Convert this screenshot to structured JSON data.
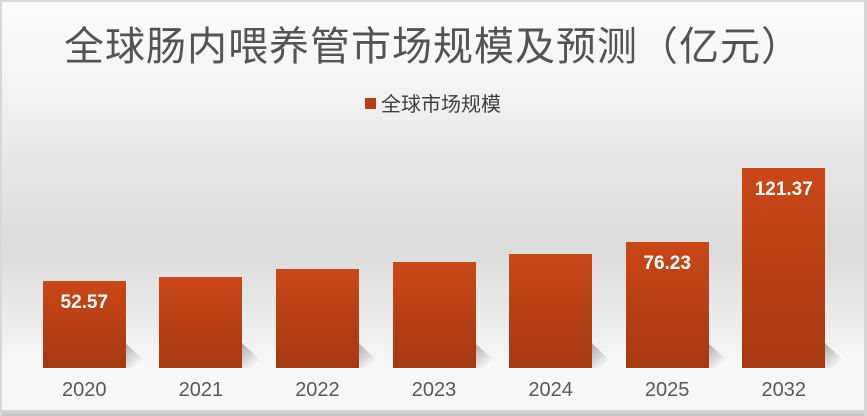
{
  "title": {
    "text": "全球肠内喂养管市场规模及预测（亿元）"
  },
  "legend": {
    "label": "全球市场规模"
  },
  "colors": {
    "bar_gradient_top": "#cb4717",
    "bar_gradient_bottom": "#a83a12",
    "legend_swatch": "#b63d15",
    "title_text": "#545454",
    "axis_label_text": "#595959",
    "data_label_text": "#ffffff",
    "background_mid": "#dcdcdc",
    "frame_border": "#d5d5d5"
  },
  "chart_data": {
    "type": "bar",
    "title": "全球肠内喂养管市场规模及预测（亿元）",
    "unit": "亿元",
    "legend": [
      "全球市场规模"
    ],
    "legend_position": "top-center",
    "categories": [
      "2020",
      "2021",
      "2022",
      "2023",
      "2024",
      "2025",
      "2032"
    ],
    "series": [
      {
        "name": "全球市场规模",
        "values": [
          52.57,
          55.2,
          60.1,
          64.3,
          69.2,
          76.23,
          121.37
        ]
      }
    ],
    "data_labels_visible": [
      "52.57",
      "",
      "",
      "",
      "",
      "76.23",
      "121.37"
    ],
    "xlabel": "",
    "ylabel": "",
    "y_axis_shown": false,
    "x_axis_line_shown": false,
    "gridlines": false,
    "ylim": [
      0,
      130
    ]
  }
}
